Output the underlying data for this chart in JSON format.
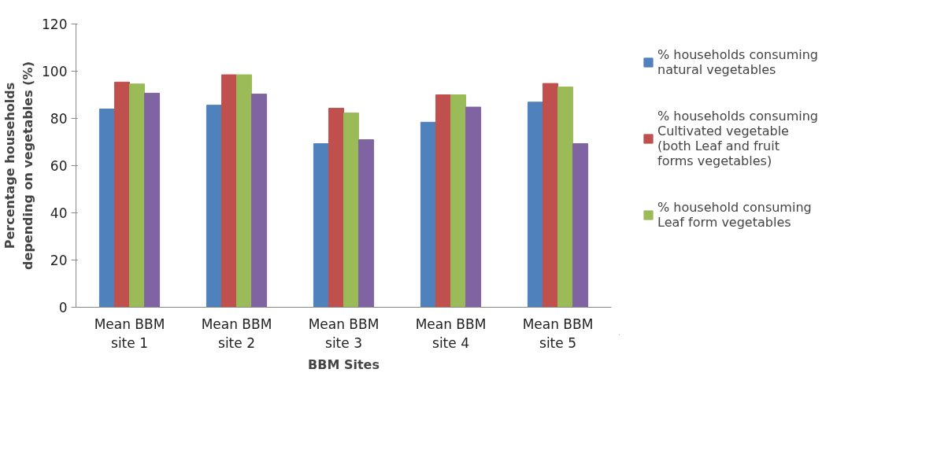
{
  "chart_data": {
    "type": "bar",
    "xlabel": "BBM Sites",
    "ylabel": "Percentage households depending on vegetables (%)",
    "categories": [
      "Mean BBM site 1",
      "Mean BBM site 2",
      "Mean BBM site 3",
      "Mean BBM site 4",
      "Mean BBM site 5"
    ],
    "series": [
      {
        "name": "% households consuming natural vegetables",
        "color": "#4f81bd",
        "values": [
          84,
          85.6,
          69.3,
          78.4,
          86.9
        ]
      },
      {
        "name": "% households consuming Cultivated vegetable (both Leaf and fruit forms vegetables)",
        "color": "#c0504d",
        "values": [
          95.4,
          98.5,
          84.3,
          90,
          94.8
        ]
      },
      {
        "name": "% household consuming Leaf form vegetables",
        "color": "#9bbb59",
        "values": [
          94.6,
          98.5,
          82.3,
          90,
          93.3
        ]
      },
      {
        "color": "#8064a2",
        "values": [
          90.7,
          90.3,
          71,
          84.8,
          69.3
        ]
      }
    ],
    "ylim": [
      0,
      120
    ],
    "yticks": [
      0,
      20,
      40,
      60,
      80,
      100,
      120
    ],
    "grid": false,
    "legend": "right"
  }
}
